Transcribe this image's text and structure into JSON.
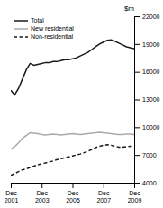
{
  "chart_data": {
    "type": "line",
    "ylabel": "$m",
    "categories": [
      "Dec\n2001",
      null,
      null,
      null,
      null,
      null,
      null,
      null,
      "Dec\n2003",
      null,
      null,
      null,
      null,
      null,
      null,
      null,
      "Dec\n2005",
      null,
      null,
      null,
      null,
      null,
      null,
      null,
      "Dec\n2007",
      null,
      null,
      null,
      null,
      null,
      null,
      null,
      "Dec\n2009"
    ],
    "series": [
      {
        "name": "Total",
        "color": "#1a1a1a",
        "line_style": "solid",
        "values": [
          14000,
          13500,
          14200,
          15200,
          16200,
          16900,
          16700,
          16800,
          16900,
          17000,
          17000,
          17100,
          17100,
          17200,
          17300,
          17300,
          17400,
          17500,
          17700,
          17900,
          18100,
          18400,
          18700,
          19000,
          19200,
          19400,
          19450,
          19300,
          19100,
          18900,
          18700,
          18600,
          18500
        ]
      },
      {
        "name": "New residential",
        "color": "#aaaaaa",
        "line_style": "solid",
        "values": [
          7600,
          7900,
          8300,
          8800,
          9100,
          9400,
          9350,
          9300,
          9200,
          9150,
          9200,
          9250,
          9200,
          9150,
          9200,
          9250,
          9300,
          9250,
          9200,
          9250,
          9300,
          9350,
          9400,
          9450,
          9400,
          9350,
          9300,
          9250,
          9200,
          9200,
          9250,
          9250,
          9200
        ]
      },
      {
        "name": "Non-residential",
        "color": "#1a1a1a",
        "line_style": "dashed",
        "values": [
          4800,
          5000,
          5200,
          5400,
          5500,
          5650,
          5800,
          5950,
          6050,
          6150,
          6250,
          6350,
          6500,
          6600,
          6700,
          6800,
          6900,
          7000,
          7100,
          7250,
          7400,
          7600,
          7800,
          7950,
          8050,
          8100,
          8050,
          7950,
          7850,
          7850,
          7900,
          7950,
          7900
        ]
      }
    ],
    "ylim": [
      4000,
      22000
    ],
    "yticks": [
      4000,
      7000,
      10000,
      13000,
      16000,
      19000,
      22000
    ],
    "grid": false,
    "legend": "upper-left"
  }
}
